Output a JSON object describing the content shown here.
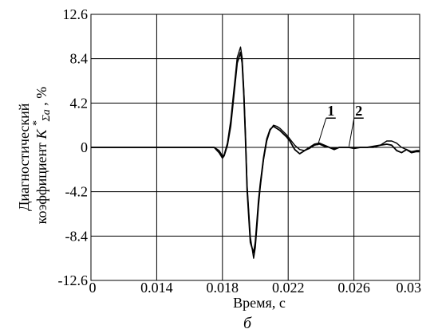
{
  "chart_data": {
    "type": "line",
    "xlabel": "Время, с",
    "ylabel_line1": "Диагностический",
    "ylabel_line2": "коэффициент",
    "ylabel_symbol": "K",
    "ylabel_sup": "*",
    "ylabel_sub": "Σa",
    "ylabel_unit": ", %",
    "caption": "б",
    "xlim": [
      0.01,
      0.03
    ],
    "ylim": [
      -12.6,
      12.6
    ],
    "grid": true,
    "x_ticks": [
      {
        "value": 0.01,
        "label": "0"
      },
      {
        "value": 0.014,
        "label": "0.014"
      },
      {
        "value": 0.018,
        "label": "0.018"
      },
      {
        "value": 0.022,
        "label": "0.022"
      },
      {
        "value": 0.026,
        "label": "0.026"
      },
      {
        "value": 0.03,
        "label": "0.03"
      }
    ],
    "y_ticks": [
      {
        "value": 12.6,
        "label": "12.6"
      },
      {
        "value": 8.4,
        "label": "8.4"
      },
      {
        "value": 4.2,
        "label": "4.2"
      },
      {
        "value": 0,
        "label": "0"
      },
      {
        "value": -4.2,
        "label": "-4.2"
      },
      {
        "value": -8.4,
        "label": "-8.4"
      },
      {
        "value": -12.6,
        "label": "-12.6"
      }
    ],
    "series_labels": [
      {
        "label": "1",
        "text_at": [
          0.0246,
          3.0
        ],
        "points_to": [
          0.0238,
          0.2
        ]
      },
      {
        "label": "2",
        "text_at": [
          0.0263,
          3.0
        ],
        "points_to": [
          0.0257,
          0.1
        ]
      }
    ],
    "series": [
      {
        "label": "1",
        "x": [
          0.01,
          0.012,
          0.014,
          0.016,
          0.017,
          0.0175,
          0.0178,
          0.018,
          0.0181,
          0.0183,
          0.0185,
          0.0187,
          0.0189,
          0.0191,
          0.0192,
          0.0193,
          0.0194,
          0.0195,
          0.0197,
          0.0199,
          0.02,
          0.0201,
          0.0202,
          0.0203,
          0.0205,
          0.0207,
          0.0209,
          0.0211,
          0.0213,
          0.0215,
          0.0217,
          0.0219,
          0.0221,
          0.0224,
          0.0227,
          0.023,
          0.0233,
          0.0236,
          0.0239,
          0.0242,
          0.0245,
          0.0248,
          0.0251,
          0.0254,
          0.0257,
          0.026,
          0.0264,
          0.0268,
          0.0272,
          0.0276,
          0.028,
          0.0283,
          0.0286,
          0.0289,
          0.0292,
          0.0295,
          0.0298,
          0.03
        ],
        "y": [
          0.0,
          0.0,
          0.0,
          0.0,
          0.0,
          0.0,
          -0.5,
          -1.0,
          -0.8,
          0.2,
          2.0,
          5.0,
          8.0,
          9.0,
          8.0,
          5.0,
          1.0,
          -4.0,
          -9.0,
          -10.0,
          -9.0,
          -7.0,
          -5.0,
          -3.5,
          -1.0,
          0.8,
          1.7,
          2.0,
          1.8,
          1.6,
          1.3,
          1.0,
          0.6,
          -0.2,
          -0.6,
          -0.3,
          0.0,
          0.3,
          0.4,
          0.2,
          0.0,
          -0.2,
          0.0,
          0.0,
          0.0,
          -0.1,
          0.0,
          0.0,
          0.1,
          0.2,
          0.3,
          0.2,
          -0.3,
          -0.5,
          -0.2,
          -0.5,
          -0.4,
          -0.4
        ]
      },
      {
        "label": "2",
        "x": [
          0.01,
          0.012,
          0.014,
          0.016,
          0.017,
          0.0175,
          0.0178,
          0.018,
          0.0181,
          0.0183,
          0.0185,
          0.0187,
          0.0189,
          0.0191,
          0.0192,
          0.0193,
          0.0194,
          0.0195,
          0.0197,
          0.0199,
          0.02,
          0.0201,
          0.0202,
          0.0203,
          0.0205,
          0.0207,
          0.0209,
          0.0211,
          0.0213,
          0.0215,
          0.0217,
          0.0219,
          0.0221,
          0.0224,
          0.0227,
          0.023,
          0.0233,
          0.0236,
          0.0239,
          0.0242,
          0.0245,
          0.0248,
          0.0251,
          0.0254,
          0.0257,
          0.026,
          0.0264,
          0.0268,
          0.0272,
          0.0276,
          0.028,
          0.0283,
          0.0286,
          0.0289,
          0.0292,
          0.0295,
          0.0298,
          0.03
        ],
        "y": [
          0.0,
          0.0,
          0.0,
          0.0,
          0.0,
          0.0,
          -0.3,
          -0.8,
          -0.7,
          0.4,
          2.5,
          5.5,
          8.5,
          9.5,
          8.5,
          5.5,
          1.5,
          -3.5,
          -8.5,
          -10.5,
          -9.5,
          -7.5,
          -5.5,
          -3.8,
          -1.2,
          0.6,
          1.6,
          2.1,
          2.0,
          1.8,
          1.5,
          1.2,
          0.8,
          0.2,
          -0.2,
          -0.3,
          -0.1,
          0.2,
          0.3,
          0.1,
          0.0,
          -0.1,
          0.0,
          0.0,
          0.0,
          0.0,
          0.0,
          0.0,
          0.0,
          0.2,
          0.6,
          0.6,
          0.4,
          0.0,
          -0.2,
          -0.4,
          -0.3,
          -0.3
        ]
      }
    ]
  }
}
